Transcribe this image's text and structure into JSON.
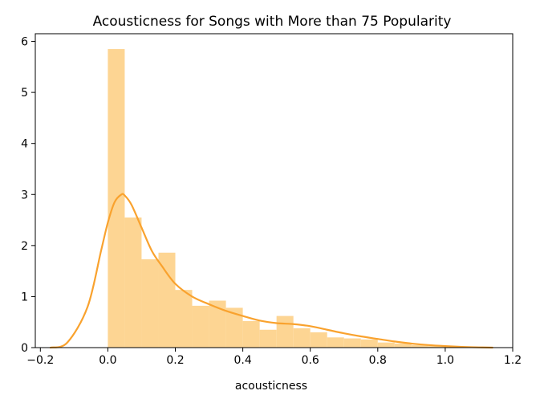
{
  "chart_data": {
    "type": "bar",
    "title": "Acousticness for Songs with More than 75 Popularity",
    "xlabel": "acousticness",
    "ylabel": "",
    "xlim": [
      -0.215,
      1.2
    ],
    "ylim": [
      0,
      6.15
    ],
    "grid": false,
    "x_ticks": [
      -0.2,
      0.0,
      0.2,
      0.4,
      0.6,
      0.8,
      1.0,
      1.2
    ],
    "x_tick_labels": [
      "−0.2",
      "0.0",
      "0.2",
      "0.4",
      "0.6",
      "0.8",
      "1.0",
      "1.2"
    ],
    "y_ticks": [
      0,
      1,
      2,
      3,
      4,
      5,
      6
    ],
    "y_tick_labels": [
      "0",
      "1",
      "2",
      "3",
      "4",
      "5",
      "6"
    ],
    "histogram": {
      "bin_width": 0.05,
      "bins": [
        {
          "x0": 0.0,
          "height": 5.85
        },
        {
          "x0": 0.05,
          "height": 2.55
        },
        {
          "x0": 0.1,
          "height": 1.73
        },
        {
          "x0": 0.15,
          "height": 1.86
        },
        {
          "x0": 0.2,
          "height": 1.13
        },
        {
          "x0": 0.25,
          "height": 0.82
        },
        {
          "x0": 0.3,
          "height": 0.92
        },
        {
          "x0": 0.35,
          "height": 0.78
        },
        {
          "x0": 0.4,
          "height": 0.52
        },
        {
          "x0": 0.45,
          "height": 0.35
        },
        {
          "x0": 0.5,
          "height": 0.62
        },
        {
          "x0": 0.55,
          "height": 0.38
        },
        {
          "x0": 0.6,
          "height": 0.3
        },
        {
          "x0": 0.65,
          "height": 0.2
        },
        {
          "x0": 0.7,
          "height": 0.18
        },
        {
          "x0": 0.75,
          "height": 0.16
        },
        {
          "x0": 0.8,
          "height": 0.1
        },
        {
          "x0": 0.85,
          "height": 0.08
        },
        {
          "x0": 0.9,
          "height": 0.05
        },
        {
          "x0": 0.95,
          "height": 0.03
        },
        {
          "x0": 1.0,
          "height": 0.02
        }
      ]
    },
    "kde": {
      "x": [
        -0.17,
        -0.12,
        -0.06,
        -0.02,
        0.0,
        0.02,
        0.04,
        0.05,
        0.07,
        0.1,
        0.13,
        0.16,
        0.2,
        0.25,
        0.3,
        0.35,
        0.4,
        0.45,
        0.5,
        0.55,
        0.6,
        0.65,
        0.7,
        0.75,
        0.8,
        0.85,
        0.9,
        0.95,
        1.0,
        1.05,
        1.1,
        1.14
      ],
      "y": [
        0.0,
        0.1,
        0.8,
        1.9,
        2.45,
        2.85,
        3.0,
        2.98,
        2.8,
        2.35,
        1.9,
        1.6,
        1.25,
        1.0,
        0.85,
        0.72,
        0.62,
        0.53,
        0.48,
        0.46,
        0.42,
        0.35,
        0.28,
        0.22,
        0.17,
        0.12,
        0.08,
        0.05,
        0.03,
        0.015,
        0.005,
        0.0
      ]
    },
    "colors": {
      "bar_fill": "#fdd593",
      "line": "#f9a22e",
      "axis": "#000000"
    }
  }
}
